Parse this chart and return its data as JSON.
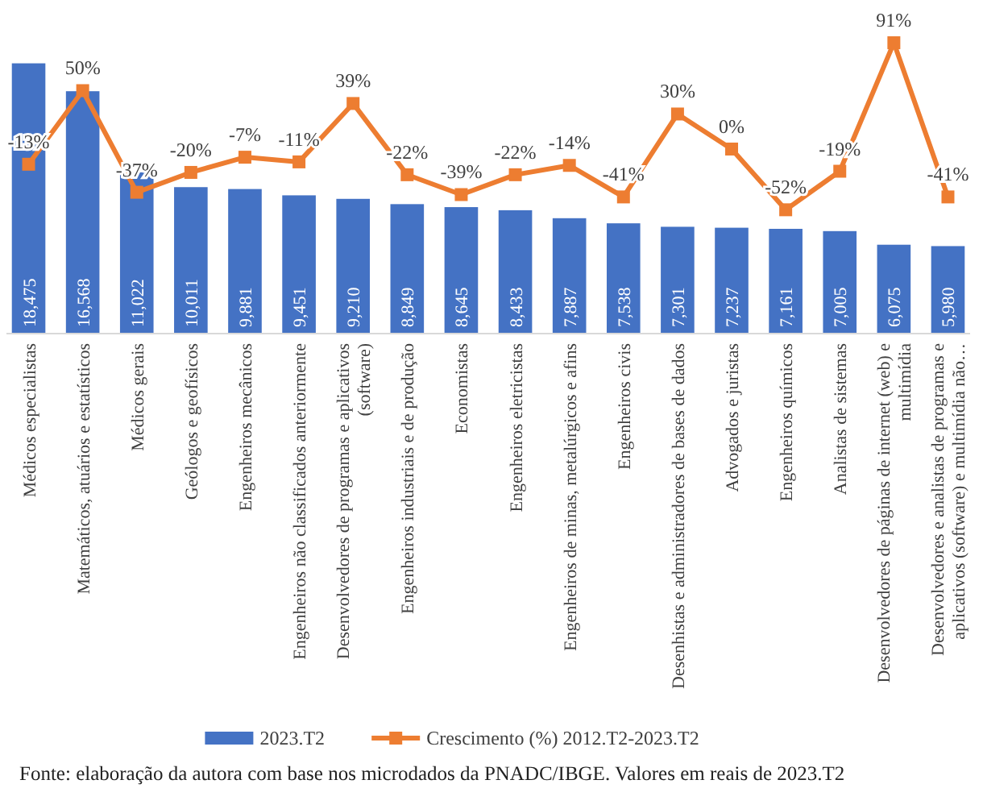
{
  "chart_data": {
    "type": "bar",
    "categories": [
      "Médicos especialistas",
      "Matemáticos, atuários e estatísticos",
      "Médicos gerais",
      "Geólogos e geofísicos",
      "Engenheiros mecânicos",
      "Engenheiros não classificados anteriormente",
      "Desenvolvedores de programas e aplicativos (software)",
      "Engenheiros industriais e de produção",
      "Economistas",
      "Engenheiros eletricistas",
      "Engenheiros de minas, metalúrgicos e afins",
      "Engenheiros civis",
      "Desenhistas e administradores de bases de dados",
      "Advogados e juristas",
      "Engenheiros químicos",
      "Analistas de sistemas",
      "Desenvolvedores de páginas de internet (web) e multimídia",
      "Desenvolvedores e analistas de programas e aplicativos (software) e multimídia não…"
    ],
    "series": [
      {
        "name": "2023.T2",
        "color": "#4472c4",
        "values": [
          18475,
          16568,
          11022,
          10011,
          9881,
          9451,
          9210,
          8849,
          8645,
          8433,
          7887,
          7538,
          7301,
          7237,
          7161,
          7005,
          6075,
          5980
        ],
        "value_labels": [
          "18,475",
          "16,568",
          "11,022",
          "10,011",
          "9,881",
          "9,451",
          "9,210",
          "8,849",
          "8,645",
          "8,433",
          "7,887",
          "7,538",
          "7,301",
          "7,237",
          "7,161",
          "7,005",
          "6,075",
          "5,980"
        ]
      },
      {
        "name": "Crescimento (%) 2012.T2-2023.T2",
        "type": "line",
        "axis": "y2",
        "color": "#ed7d31",
        "marker": "square",
        "values": [
          -13,
          50,
          -37,
          -20,
          -7,
          -11,
          39,
          -22,
          -39,
          -22,
          -14,
          -41,
          30,
          0,
          -52,
          -19,
          91,
          -41
        ],
        "value_labels": [
          "-13%",
          "50%",
          "-37%",
          "-20%",
          "-7%",
          "-11%",
          "39%",
          "-22%",
          "-39%",
          "-22%",
          "-14%",
          "-41%",
          "30%",
          "0%",
          "-52%",
          "-19%",
          "91%",
          "-41%"
        ]
      }
    ],
    "ylim": [
      0,
      20600
    ],
    "y2lim": [
      -158,
      100
    ],
    "tick_labels": "x",
    "legend": "bottom",
    "annotations": [
      "Fonte: elaboração da autora com base nos microdados da PNADC/IBGE. Valores em reais de 2023.T2"
    ]
  }
}
